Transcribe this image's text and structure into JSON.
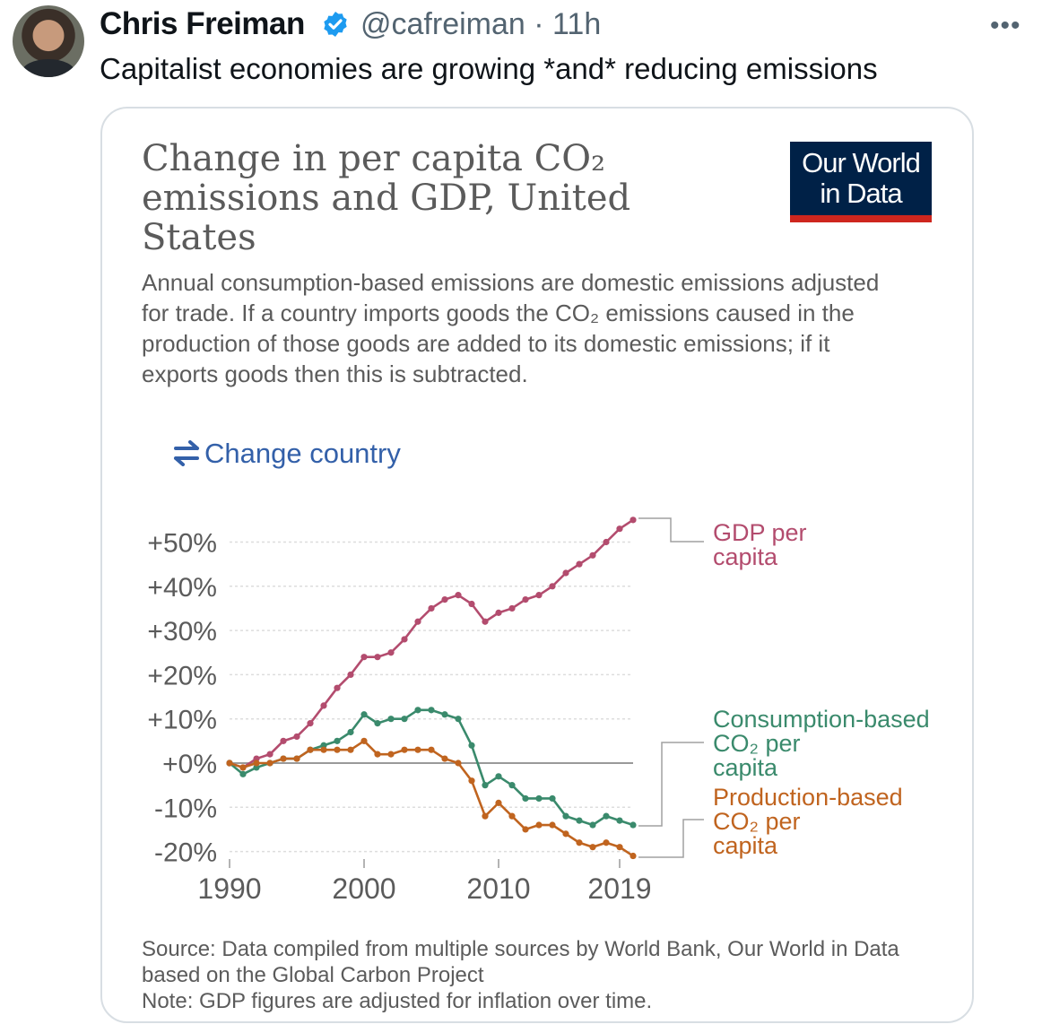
{
  "tweet": {
    "author": "Chris Freiman",
    "handle": "@cafreiman",
    "dot": "·",
    "time": "11h",
    "text": "Capitalist economies are growing *and* reducing emissions",
    "more": "•••"
  },
  "card": {
    "title": "Change in per capita CO₂ emissions and GDP, United States",
    "logo_line1": "Our World",
    "logo_line2": "in Data",
    "subtitle": "Annual consumption-based emissions are domestic emissions adjusted for trade. If a country imports goods the CO₂ emissions caused in the production of those goods are added to its domestic emissions; if it exports goods then this is subtracted.",
    "change_country": "Change country",
    "source_line1": "Source: Data compiled from multiple sources by World Bank, Our World in Data based on the Global Carbon Project",
    "note": "Note: GDP figures are adjusted for inflation over time."
  },
  "colors": {
    "gdp": "#b34c6e",
    "consumption": "#3a8a6c",
    "production": "#c0641f",
    "link": "#3360a9",
    "logo_bg": "#002147",
    "logo_bar": "#ce261e"
  },
  "chart_data": {
    "type": "line",
    "title": "Change in per capita CO₂ emissions and GDP, United States",
    "y_ticks": [
      {
        "value": 50,
        "label": "+50%"
      },
      {
        "value": 40,
        "label": "+40%"
      },
      {
        "value": 30,
        "label": "+30%"
      },
      {
        "value": 20,
        "label": "+20%"
      },
      {
        "value": 10,
        "label": "+10%"
      },
      {
        "value": 0,
        "label": "+0%"
      },
      {
        "value": -10,
        "label": "-10%"
      },
      {
        "value": -20,
        "label": "-20%"
      }
    ],
    "x_ticks": [
      1990,
      2000,
      2010,
      2019
    ],
    "x_range": [
      1990,
      2019
    ],
    "y_range": [
      -20,
      55
    ],
    "grid": true,
    "legend": "right, labels at line ends",
    "x": [
      1990,
      1991,
      1992,
      1993,
      1994,
      1995,
      1996,
      1997,
      1998,
      1999,
      2000,
      2001,
      2002,
      2003,
      2004,
      2005,
      2006,
      2007,
      2008,
      2009,
      2010,
      2011,
      2012,
      2013,
      2014,
      2015,
      2016,
      2017,
      2018,
      2019,
      2020
    ],
    "series": [
      {
        "name": "GDP per capita",
        "color": "#b34c6e",
        "values": [
          0,
          -1,
          1,
          2,
          5,
          6,
          9,
          13,
          17,
          20,
          24,
          24,
          25,
          28,
          32,
          35,
          37,
          38,
          36,
          32,
          34,
          35,
          37,
          38,
          40,
          43,
          45,
          47,
          50,
          53,
          55
        ]
      },
      {
        "name": "Consumption-based CO₂ per capita",
        "color": "#3a8a6c",
        "values": [
          0,
          -2.5,
          -1,
          0,
          1,
          1,
          3,
          4,
          5,
          7,
          11,
          9,
          10,
          10,
          12,
          12,
          11,
          10,
          4,
          -5,
          -3,
          -5,
          -8,
          -8,
          -8,
          -12,
          -13,
          -14,
          -12,
          -13,
          -14
        ]
      },
      {
        "name": "Production-based CO₂ per capita",
        "color": "#c0641f",
        "values": [
          0,
          -1,
          0,
          0,
          1,
          1,
          3,
          3,
          3,
          3,
          5,
          2,
          2,
          3,
          3,
          3,
          1,
          0,
          -4,
          -12,
          -9,
          -12,
          -15,
          -14,
          -14,
          -16,
          -18,
          -19,
          -18,
          -19,
          -21
        ]
      }
    ]
  }
}
